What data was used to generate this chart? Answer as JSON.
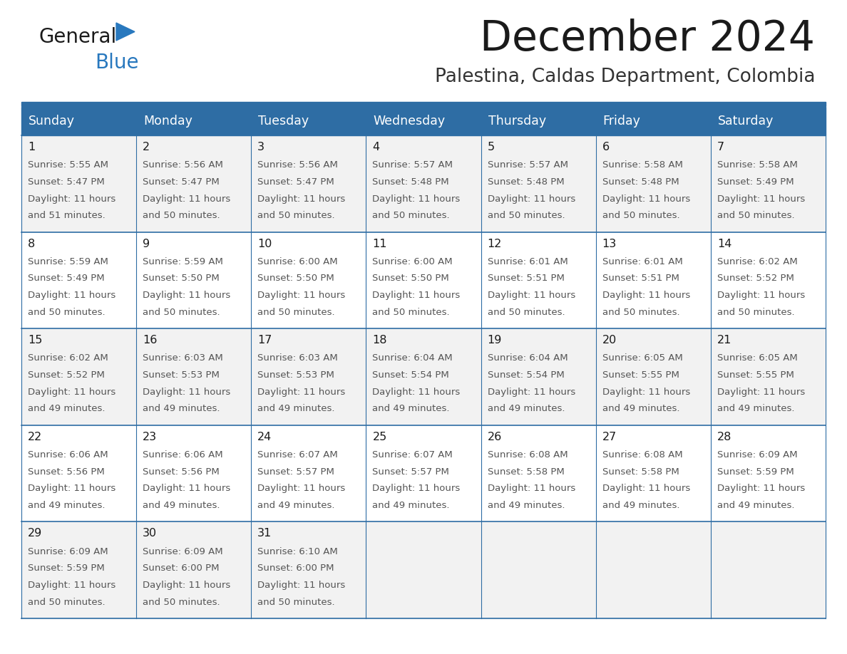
{
  "title": "December 2024",
  "subtitle": "Palestina, Caldas Department, Colombia",
  "header_bg_color": "#2E6DA4",
  "header_text_color": "#FFFFFF",
  "day_names": [
    "Sunday",
    "Monday",
    "Tuesday",
    "Wednesday",
    "Thursday",
    "Friday",
    "Saturday"
  ],
  "row_bg_even": "#F2F2F2",
  "row_bg_odd": "#FFFFFF",
  "grid_line_color": "#2E6DA4",
  "title_color": "#1a1a1a",
  "subtitle_color": "#333333",
  "day_number_color": "#1a1a1a",
  "cell_text_color": "#555555",
  "logo_general_color": "#1a1a1a",
  "logo_blue_color": "#2878be",
  "cells": [
    {
      "day": 1,
      "row": 0,
      "col": 0,
      "sunrise": "5:55 AM",
      "sunset": "5:47 PM",
      "daylight_hrs": 11,
      "daylight_min": 51
    },
    {
      "day": 2,
      "row": 0,
      "col": 1,
      "sunrise": "5:56 AM",
      "sunset": "5:47 PM",
      "daylight_hrs": 11,
      "daylight_min": 50
    },
    {
      "day": 3,
      "row": 0,
      "col": 2,
      "sunrise": "5:56 AM",
      "sunset": "5:47 PM",
      "daylight_hrs": 11,
      "daylight_min": 50
    },
    {
      "day": 4,
      "row": 0,
      "col": 3,
      "sunrise": "5:57 AM",
      "sunset": "5:48 PM",
      "daylight_hrs": 11,
      "daylight_min": 50
    },
    {
      "day": 5,
      "row": 0,
      "col": 4,
      "sunrise": "5:57 AM",
      "sunset": "5:48 PM",
      "daylight_hrs": 11,
      "daylight_min": 50
    },
    {
      "day": 6,
      "row": 0,
      "col": 5,
      "sunrise": "5:58 AM",
      "sunset": "5:48 PM",
      "daylight_hrs": 11,
      "daylight_min": 50
    },
    {
      "day": 7,
      "row": 0,
      "col": 6,
      "sunrise": "5:58 AM",
      "sunset": "5:49 PM",
      "daylight_hrs": 11,
      "daylight_min": 50
    },
    {
      "day": 8,
      "row": 1,
      "col": 0,
      "sunrise": "5:59 AM",
      "sunset": "5:49 PM",
      "daylight_hrs": 11,
      "daylight_min": 50
    },
    {
      "day": 9,
      "row": 1,
      "col": 1,
      "sunrise": "5:59 AM",
      "sunset": "5:50 PM",
      "daylight_hrs": 11,
      "daylight_min": 50
    },
    {
      "day": 10,
      "row": 1,
      "col": 2,
      "sunrise": "6:00 AM",
      "sunset": "5:50 PM",
      "daylight_hrs": 11,
      "daylight_min": 50
    },
    {
      "day": 11,
      "row": 1,
      "col": 3,
      "sunrise": "6:00 AM",
      "sunset": "5:50 PM",
      "daylight_hrs": 11,
      "daylight_min": 50
    },
    {
      "day": 12,
      "row": 1,
      "col": 4,
      "sunrise": "6:01 AM",
      "sunset": "5:51 PM",
      "daylight_hrs": 11,
      "daylight_min": 50
    },
    {
      "day": 13,
      "row": 1,
      "col": 5,
      "sunrise": "6:01 AM",
      "sunset": "5:51 PM",
      "daylight_hrs": 11,
      "daylight_min": 50
    },
    {
      "day": 14,
      "row": 1,
      "col": 6,
      "sunrise": "6:02 AM",
      "sunset": "5:52 PM",
      "daylight_hrs": 11,
      "daylight_min": 50
    },
    {
      "day": 15,
      "row": 2,
      "col": 0,
      "sunrise": "6:02 AM",
      "sunset": "5:52 PM",
      "daylight_hrs": 11,
      "daylight_min": 49
    },
    {
      "day": 16,
      "row": 2,
      "col": 1,
      "sunrise": "6:03 AM",
      "sunset": "5:53 PM",
      "daylight_hrs": 11,
      "daylight_min": 49
    },
    {
      "day": 17,
      "row": 2,
      "col": 2,
      "sunrise": "6:03 AM",
      "sunset": "5:53 PM",
      "daylight_hrs": 11,
      "daylight_min": 49
    },
    {
      "day": 18,
      "row": 2,
      "col": 3,
      "sunrise": "6:04 AM",
      "sunset": "5:54 PM",
      "daylight_hrs": 11,
      "daylight_min": 49
    },
    {
      "day": 19,
      "row": 2,
      "col": 4,
      "sunrise": "6:04 AM",
      "sunset": "5:54 PM",
      "daylight_hrs": 11,
      "daylight_min": 49
    },
    {
      "day": 20,
      "row": 2,
      "col": 5,
      "sunrise": "6:05 AM",
      "sunset": "5:55 PM",
      "daylight_hrs": 11,
      "daylight_min": 49
    },
    {
      "day": 21,
      "row": 2,
      "col": 6,
      "sunrise": "6:05 AM",
      "sunset": "5:55 PM",
      "daylight_hrs": 11,
      "daylight_min": 49
    },
    {
      "day": 22,
      "row": 3,
      "col": 0,
      "sunrise": "6:06 AM",
      "sunset": "5:56 PM",
      "daylight_hrs": 11,
      "daylight_min": 49
    },
    {
      "day": 23,
      "row": 3,
      "col": 1,
      "sunrise": "6:06 AM",
      "sunset": "5:56 PM",
      "daylight_hrs": 11,
      "daylight_min": 49
    },
    {
      "day": 24,
      "row": 3,
      "col": 2,
      "sunrise": "6:07 AM",
      "sunset": "5:57 PM",
      "daylight_hrs": 11,
      "daylight_min": 49
    },
    {
      "day": 25,
      "row": 3,
      "col": 3,
      "sunrise": "6:07 AM",
      "sunset": "5:57 PM",
      "daylight_hrs": 11,
      "daylight_min": 49
    },
    {
      "day": 26,
      "row": 3,
      "col": 4,
      "sunrise": "6:08 AM",
      "sunset": "5:58 PM",
      "daylight_hrs": 11,
      "daylight_min": 49
    },
    {
      "day": 27,
      "row": 3,
      "col": 5,
      "sunrise": "6:08 AM",
      "sunset": "5:58 PM",
      "daylight_hrs": 11,
      "daylight_min": 49
    },
    {
      "day": 28,
      "row": 3,
      "col": 6,
      "sunrise": "6:09 AM",
      "sunset": "5:59 PM",
      "daylight_hrs": 11,
      "daylight_min": 49
    },
    {
      "day": 29,
      "row": 4,
      "col": 0,
      "sunrise": "6:09 AM",
      "sunset": "5:59 PM",
      "daylight_hrs": 11,
      "daylight_min": 50
    },
    {
      "day": 30,
      "row": 4,
      "col": 1,
      "sunrise": "6:09 AM",
      "sunset": "6:00 PM",
      "daylight_hrs": 11,
      "daylight_min": 50
    },
    {
      "day": 31,
      "row": 4,
      "col": 2,
      "sunrise": "6:10 AM",
      "sunset": "6:00 PM",
      "daylight_hrs": 11,
      "daylight_min": 50
    }
  ]
}
